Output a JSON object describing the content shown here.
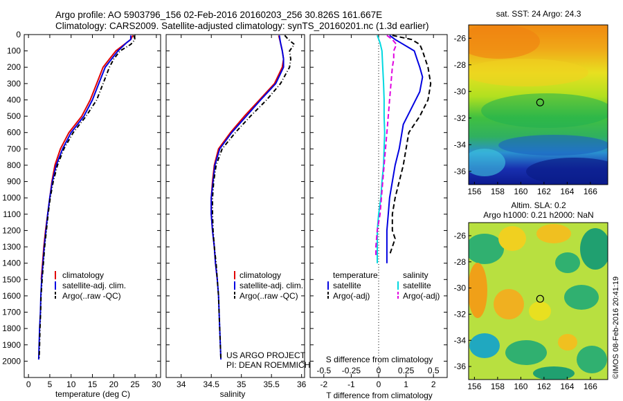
{
  "header": {
    "title_line1": "Argo profile: AO 5903796_156 02-Feb-2016 20160203_256 30.826S 161.667E",
    "title_line2": "Climatology: CARS2009. Satellite-adjusted climatology: synTS_20160201.nc (1.3d earlier)"
  },
  "side_stamp": "©IMOS 08-Feb-2016 20:41:19",
  "chart_data": [
    {
      "id": "temperature",
      "type": "line",
      "xlabel": "temperature (deg C)",
      "xlim": [
        -1,
        31
      ],
      "xticks": [
        0,
        5,
        10,
        15,
        20,
        25,
        30
      ],
      "ylim": [
        0,
        2100
      ],
      "yticks": [
        0,
        100,
        200,
        300,
        400,
        500,
        600,
        700,
        800,
        900,
        1000,
        1100,
        1200,
        1300,
        1400,
        1500,
        1600,
        1700,
        1800,
        1900,
        2000
      ],
      "legend": [
        "climatology",
        "satellite-adj. clim.",
        "Argo(..raw -QC)"
      ],
      "series": [
        {
          "name": "climatology",
          "color": "#e00000",
          "dash": "",
          "points": [
            [
              24.5,
              5
            ],
            [
              24,
              30
            ],
            [
              23,
              50
            ],
            [
              20.5,
              100
            ],
            [
              19,
              150
            ],
            [
              17.5,
              200
            ],
            [
              16,
              300
            ],
            [
              14.5,
              400
            ],
            [
              12.5,
              500
            ],
            [
              9.5,
              600
            ],
            [
              7.5,
              700
            ],
            [
              6.2,
              800
            ],
            [
              5.5,
              900
            ],
            [
              5,
              1000
            ],
            [
              4.5,
              1100
            ],
            [
              4,
              1200
            ],
            [
              3.6,
              1300
            ],
            [
              3.3,
              1400
            ],
            [
              3,
              1500
            ]
          ]
        },
        {
          "name": "satellite-adj. clim.",
          "color": "#0000e0",
          "dash": "",
          "points": [
            [
              24,
              5
            ],
            [
              24,
              30
            ],
            [
              23,
              50
            ],
            [
              21,
              100
            ],
            [
              19.5,
              150
            ],
            [
              18,
              200
            ],
            [
              16.5,
              300
            ],
            [
              15,
              400
            ],
            [
              13,
              500
            ],
            [
              10,
              600
            ],
            [
              8,
              700
            ],
            [
              6.5,
              800
            ],
            [
              5.6,
              900
            ],
            [
              5,
              1000
            ],
            [
              4.5,
              1100
            ],
            [
              4.1,
              1200
            ],
            [
              3.7,
              1300
            ],
            [
              3.4,
              1400
            ],
            [
              3.1,
              1500
            ],
            [
              2.9,
              1600
            ],
            [
              2.8,
              1700
            ],
            [
              2.6,
              1800
            ],
            [
              2.5,
              1900
            ],
            [
              2.4,
              1990
            ]
          ]
        },
        {
          "name": "Argo(..raw -QC)",
          "color": "#000000",
          "dash": "6 3 1 3",
          "points": [
            [
              24.7,
              5
            ],
            [
              25,
              30
            ],
            [
              24,
              60
            ],
            [
              21.5,
              100
            ],
            [
              20,
              150
            ],
            [
              19,
              200
            ],
            [
              17.5,
              300
            ],
            [
              16,
              400
            ],
            [
              13.5,
              500
            ],
            [
              10.5,
              600
            ],
            [
              8.3,
              700
            ],
            [
              6.8,
              800
            ],
            [
              5.8,
              900
            ],
            [
              5.1,
              1000
            ],
            [
              4.6,
              1100
            ],
            [
              4.2,
              1200
            ],
            [
              3.8,
              1300
            ],
            [
              3.5,
              1400
            ],
            [
              3.2,
              1500
            ],
            [
              2.95,
              1600
            ],
            [
              2.85,
              1700
            ],
            [
              2.7,
              1800
            ],
            [
              2.6,
              1900
            ],
            [
              2.5,
              1990
            ]
          ]
        }
      ]
    },
    {
      "id": "salinity",
      "type": "line",
      "xlabel": "salinity",
      "xlim": [
        33.75,
        36.05
      ],
      "xticks": [
        34,
        34.5,
        35,
        35.5,
        36
      ],
      "ylim": [
        0,
        2100
      ],
      "legend": [
        "climatology",
        "satellite-adj. clim.",
        "Argo(..raw -QC)"
      ],
      "annotation": [
        "US ARGO PROJECT",
        "PI: DEAN ROEMMICH"
      ],
      "series": [
        {
          "name": "climatology",
          "color": "#e00000",
          "dash": "",
          "points": [
            [
              35.62,
              5
            ],
            [
              35.65,
              50
            ],
            [
              35.68,
              100
            ],
            [
              35.7,
              150
            ],
            [
              35.68,
              200
            ],
            [
              35.55,
              300
            ],
            [
              35.3,
              400
            ],
            [
              35.05,
              500
            ],
            [
              34.82,
              600
            ],
            [
              34.62,
              700
            ],
            [
              34.55,
              800
            ],
            [
              34.52,
              900
            ],
            [
              34.5,
              1000
            ],
            [
              34.5,
              1100
            ],
            [
              34.52,
              1200
            ],
            [
              34.55,
              1300
            ],
            [
              34.57,
              1400
            ],
            [
              34.6,
              1500
            ]
          ]
        },
        {
          "name": "satellite-adj. clim.",
          "color": "#0000e0",
          "dash": "",
          "points": [
            [
              35.63,
              5
            ],
            [
              35.65,
              50
            ],
            [
              35.68,
              100
            ],
            [
              35.7,
              150
            ],
            [
              35.7,
              200
            ],
            [
              35.57,
              300
            ],
            [
              35.32,
              400
            ],
            [
              35.08,
              500
            ],
            [
              34.84,
              600
            ],
            [
              34.64,
              700
            ],
            [
              34.56,
              800
            ],
            [
              34.53,
              900
            ],
            [
              34.5,
              1000
            ],
            [
              34.5,
              1100
            ],
            [
              34.52,
              1200
            ],
            [
              34.55,
              1300
            ],
            [
              34.57,
              1400
            ],
            [
              34.6,
              1500
            ],
            [
              34.62,
              1600
            ],
            [
              34.63,
              1700
            ],
            [
              34.64,
              1800
            ],
            [
              34.65,
              1900
            ],
            [
              34.66,
              1990
            ]
          ]
        },
        {
          "name": "Argo(..raw -QC)",
          "color": "#000000",
          "dash": "6 3 1 3",
          "points": [
            [
              35.72,
              5
            ],
            [
              35.78,
              30
            ],
            [
              35.88,
              60
            ],
            [
              35.8,
              100
            ],
            [
              35.82,
              150
            ],
            [
              35.8,
              200
            ],
            [
              35.65,
              300
            ],
            [
              35.42,
              400
            ],
            [
              35.15,
              500
            ],
            [
              34.9,
              600
            ],
            [
              34.68,
              700
            ],
            [
              34.58,
              800
            ],
            [
              34.54,
              900
            ],
            [
              34.52,
              1000
            ],
            [
              34.52,
              1100
            ],
            [
              34.53,
              1200
            ],
            [
              34.55,
              1300
            ],
            [
              34.58,
              1400
            ],
            [
              34.6,
              1500
            ],
            [
              34.62,
              1600
            ],
            [
              34.63,
              1700
            ],
            [
              34.64,
              1800
            ],
            [
              34.65,
              1900
            ],
            [
              34.66,
              1990
            ]
          ]
        }
      ]
    },
    {
      "id": "difference",
      "type": "line",
      "xlabel": "T difference from climatology",
      "xlim": [
        -2.5,
        2.5
      ],
      "xticks": [
        -2,
        -1,
        0,
        1,
        2
      ],
      "top_axis_label": "S difference from climatology",
      "top_xticks": [
        "-0.5",
        "-0.25",
        "0",
        "0.25",
        "0.5"
      ],
      "ylim": [
        0,
        2100
      ],
      "legend": {
        "temperature_title": "temperature",
        "salinity_title": "salinity",
        "temperature": [
          "satellite",
          "Argo(-adj)"
        ],
        "salinity": [
          "satellite",
          "Argo(-adj)"
        ]
      },
      "series": [
        {
          "name": "temperature satellite",
          "color": "#0000e0",
          "dash": "",
          "points": [
            [
              0.4,
              5
            ],
            [
              0.6,
              30
            ],
            [
              0.8,
              50
            ],
            [
              1.1,
              80
            ],
            [
              1.3,
              100
            ],
            [
              1.4,
              150
            ],
            [
              1.5,
              200
            ],
            [
              1.6,
              260
            ],
            [
              1.5,
              350
            ],
            [
              1.2,
              450
            ],
            [
              0.9,
              550
            ],
            [
              0.8,
              650
            ],
            [
              0.75,
              700
            ],
            [
              0.6,
              800
            ],
            [
              0.5,
              900
            ],
            [
              0.4,
              1000
            ],
            [
              0.35,
              1100
            ],
            [
              0.3,
              1200
            ],
            [
              0.3,
              1300
            ],
            [
              0.3,
              1400
            ]
          ]
        },
        {
          "name": "temperature Argo(-adj)",
          "color": "#000000",
          "dash": "7 4",
          "points": [
            [
              0.5,
              5
            ],
            [
              1.2,
              30
            ],
            [
              1.5,
              60
            ],
            [
              1.6,
              100
            ],
            [
              1.7,
              150
            ],
            [
              1.8,
              200
            ],
            [
              1.9,
              300
            ],
            [
              1.8,
              400
            ],
            [
              1.5,
              500
            ],
            [
              1.3,
              550
            ],
            [
              1.1,
              600
            ],
            [
              1.0,
              700
            ],
            [
              0.9,
              800
            ],
            [
              0.75,
              900
            ],
            [
              0.6,
              1000
            ],
            [
              0.5,
              1100
            ],
            [
              0.5,
              1200
            ],
            [
              0.6,
              1250
            ],
            [
              0.5,
              1300
            ],
            [
              0.4,
              1350
            ]
          ]
        },
        {
          "name": "salinity satellite",
          "color": "#00d8e0",
          "dash": "",
          "points": [
            [
              -0.05,
              5
            ],
            [
              0.05,
              50
            ],
            [
              0.12,
              100
            ],
            [
              0.15,
              200
            ],
            [
              0.18,
              300
            ],
            [
              0.2,
              400
            ],
            [
              0.2,
              500
            ],
            [
              0.22,
              600
            ],
            [
              0.2,
              700
            ],
            [
              0.18,
              800
            ],
            [
              0.12,
              900
            ],
            [
              0.08,
              1000
            ],
            [
              0.0,
              1100
            ],
            [
              -0.05,
              1200
            ],
            [
              -0.05,
              1300
            ],
            [
              -0.05,
              1400
            ]
          ]
        },
        {
          "name": "salinity Argo(-adj)",
          "color": "#e000e0",
          "dash": "7 4",
          "points": [
            [
              0.3,
              5
            ],
            [
              0.5,
              30
            ],
            [
              0.65,
              60
            ],
            [
              0.55,
              100
            ],
            [
              0.55,
              150
            ],
            [
              0.5,
              200
            ],
            [
              0.45,
              300
            ],
            [
              0.4,
              400
            ],
            [
              0.35,
              500
            ],
            [
              0.3,
              600
            ],
            [
              0.25,
              700
            ],
            [
              0.2,
              800
            ],
            [
              0.15,
              900
            ],
            [
              0.1,
              1000
            ],
            [
              0.05,
              1100
            ],
            [
              -0.05,
              1200
            ],
            [
              -0.1,
              1300
            ],
            [
              -0.1,
              1350
            ]
          ]
        }
      ]
    },
    {
      "id": "sst-map",
      "type": "heatmap",
      "title": "sat. SST: 24 Argo: 24.3",
      "xlim": [
        155.5,
        167.5
      ],
      "ylim": [
        -37,
        -25
      ],
      "xticks": [
        156,
        158,
        160,
        162,
        164,
        166
      ],
      "yticks": [
        -26,
        -28,
        -30,
        -32,
        -34,
        -36
      ],
      "marker": [
        161.667,
        -30.826
      ]
    },
    {
      "id": "sla-map",
      "type": "heatmap",
      "title": [
        "Altim. SLA: 0.2",
        "Argo h1000: 0.21 h2000: NaN"
      ],
      "xlim": [
        155.5,
        167.5
      ],
      "ylim": [
        -37,
        -25
      ],
      "xticks": [
        156,
        158,
        160,
        162,
        164,
        166
      ],
      "yticks": [
        -26,
        -28,
        -30,
        -32,
        -34,
        -36
      ],
      "marker": [
        161.667,
        -30.826
      ]
    }
  ]
}
